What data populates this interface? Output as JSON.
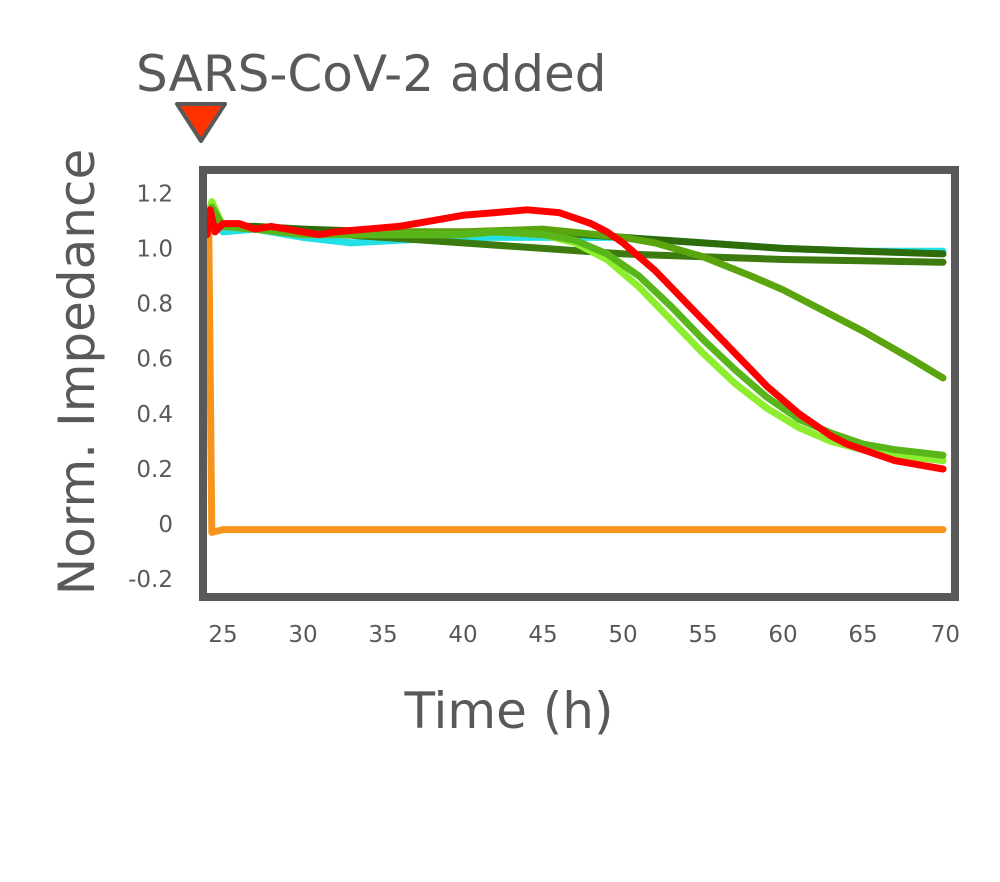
{
  "chart_data": {
    "type": "line",
    "title": "",
    "annotation": {
      "label": "SARS-CoV-2 added",
      "x": 24,
      "marker_color": "#ff3300",
      "marker_outline": "#595959"
    },
    "xlabel": "Time (h)",
    "ylabel": "Norm. Impedance",
    "xlim": [
      24,
      70.5
    ],
    "ylim": [
      -0.25,
      1.27
    ],
    "xticks": [
      25,
      30,
      35,
      40,
      45,
      50,
      55,
      60,
      65,
      70
    ],
    "yticks": [
      {
        "value": 1.2,
        "label": "1.2"
      },
      {
        "value": 1.0,
        "label": "1.0"
      },
      {
        "value": 0.8,
        "label": "0.8"
      },
      {
        "value": 0.6,
        "label": "0.6"
      },
      {
        "value": 0.4,
        "label": "0.4"
      },
      {
        "value": 0.2,
        "label": "0.2"
      },
      {
        "value": 0.0,
        "label": "0"
      },
      {
        "value": -0.2,
        "label": "-0.2"
      }
    ],
    "grid": false,
    "legend": "none",
    "frame_color": "#595959",
    "series": [
      {
        "color": "#22e0e6",
        "x": [
          24,
          24.3,
          25,
          27,
          30,
          33,
          36,
          40,
          45,
          50,
          55,
          60,
          65,
          70
        ],
        "y": [
          1.08,
          1.1,
          1.06,
          1.07,
          1.04,
          1.02,
          1.03,
          1.04,
          1.04,
          1.04,
          1.02,
          1.0,
          0.99,
          0.99
        ]
      },
      {
        "color": "#3d7a0f",
        "x": [
          24,
          24.3,
          25,
          27,
          30,
          35,
          40,
          45,
          50,
          55,
          60,
          65,
          70
        ],
        "y": [
          1.1,
          1.12,
          1.08,
          1.07,
          1.06,
          1.04,
          1.02,
          1.0,
          0.98,
          0.97,
          0.96,
          0.955,
          0.95
        ]
      },
      {
        "color": "#2e6b0a",
        "x": [
          24,
          24.3,
          25,
          27,
          30,
          35,
          40,
          45,
          50,
          55,
          60,
          65,
          70
        ],
        "y": [
          1.1,
          1.12,
          1.08,
          1.08,
          1.07,
          1.06,
          1.06,
          1.06,
          1.04,
          1.02,
          1.0,
          0.99,
          0.98
        ]
      },
      {
        "color": "#5aa50d",
        "x": [
          24,
          24.3,
          25,
          27,
          30,
          35,
          40,
          45,
          50,
          52,
          55,
          58,
          60,
          62,
          65,
          68,
          70
        ],
        "y": [
          1.1,
          1.14,
          1.08,
          1.07,
          1.05,
          1.06,
          1.06,
          1.07,
          1.04,
          1.02,
          0.97,
          0.9,
          0.85,
          0.79,
          0.7,
          0.6,
          0.53
        ]
      },
      {
        "color": "#8ded2f",
        "x": [
          24,
          24.3,
          25,
          27,
          30,
          35,
          40,
          42,
          45,
          47,
          49,
          51,
          53,
          55,
          57,
          59,
          61,
          63,
          65,
          67,
          70
        ],
        "y": [
          1.1,
          1.17,
          1.08,
          1.07,
          1.05,
          1.05,
          1.05,
          1.06,
          1.05,
          1.02,
          0.96,
          0.86,
          0.74,
          0.62,
          0.51,
          0.42,
          0.35,
          0.3,
          0.27,
          0.25,
          0.23
        ]
      },
      {
        "color": "#58b51a",
        "x": [
          24,
          24.3,
          25,
          27,
          30,
          35,
          40,
          42,
          45,
          47,
          49,
          51,
          53,
          55,
          57,
          59,
          61,
          63,
          65,
          67,
          70
        ],
        "y": [
          1.1,
          1.15,
          1.08,
          1.07,
          1.05,
          1.05,
          1.05,
          1.06,
          1.05,
          1.03,
          0.98,
          0.9,
          0.79,
          0.67,
          0.56,
          0.46,
          0.38,
          0.33,
          0.29,
          0.27,
          0.25
        ]
      },
      {
        "color": "#f7941d",
        "x": [
          24,
          24.1,
          24.3,
          25,
          30,
          40,
          50,
          60,
          70
        ],
        "y": [
          1.1,
          1.13,
          -0.03,
          -0.02,
          -0.02,
          -0.02,
          -0.02,
          -0.02,
          -0.02
        ]
      },
      {
        "color": "#ff0000",
        "x": [
          24,
          24.2,
          24.5,
          25,
          26,
          27,
          28,
          29,
          30,
          31,
          32,
          34,
          36,
          38,
          40,
          42,
          44,
          45,
          46,
          47,
          48,
          49,
          50,
          51,
          52,
          53,
          54,
          55,
          56,
          57,
          58,
          59,
          60,
          61,
          62,
          63,
          64,
          65,
          66,
          67,
          68,
          70
        ],
        "y": [
          1.05,
          1.14,
          1.06,
          1.09,
          1.09,
          1.07,
          1.08,
          1.07,
          1.06,
          1.05,
          1.06,
          1.07,
          1.08,
          1.1,
          1.12,
          1.13,
          1.14,
          1.135,
          1.13,
          1.11,
          1.09,
          1.06,
          1.02,
          0.97,
          0.92,
          0.86,
          0.8,
          0.74,
          0.68,
          0.62,
          0.56,
          0.5,
          0.45,
          0.4,
          0.36,
          0.32,
          0.29,
          0.27,
          0.25,
          0.23,
          0.22,
          0.2
        ]
      }
    ]
  }
}
